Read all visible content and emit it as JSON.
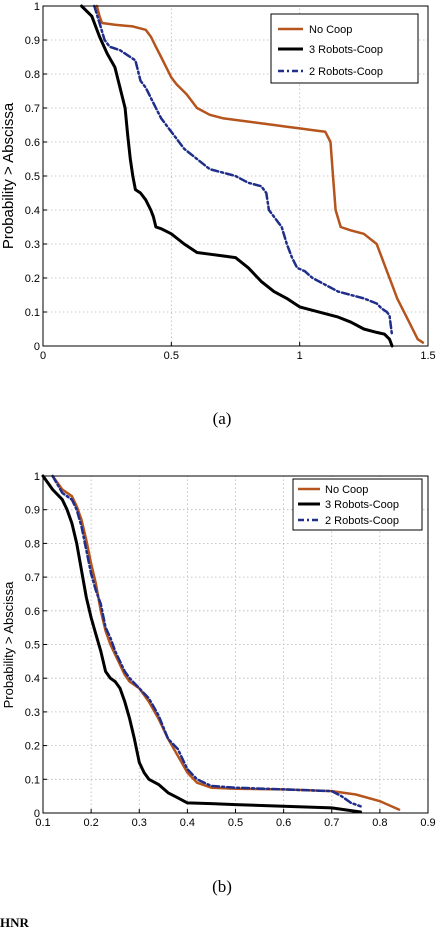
{
  "chart_data": [
    {
      "type": "line",
      "title": "",
      "xlabel": "",
      "ylabel": "Probability > Abscissa",
      "xlim": [
        0,
        1.5
      ],
      "ylim": [
        0,
        1
      ],
      "xticks": [
        "0",
        "0.5",
        "1",
        "1.5"
      ],
      "yticks": [
        "0",
        "0.1",
        "0.2",
        "0.3",
        "0.4",
        "0.5",
        "0.6",
        "0.7",
        "0.8",
        "0.9",
        "1"
      ],
      "grid": true,
      "legend": "top-right",
      "caption": "(a)",
      "series": [
        {
          "name": "No Coop",
          "color": "#b5541c",
          "dash": "solid",
          "x": [
            0.21,
            0.22,
            0.23,
            0.28,
            0.35,
            0.4,
            0.42,
            0.44,
            0.46,
            0.48,
            0.5,
            0.52,
            0.56,
            0.6,
            0.65,
            0.7,
            0.8,
            0.9,
            0.95,
            1.0,
            1.05,
            1.1,
            1.12,
            1.13,
            1.14,
            1.16,
            1.2,
            1.25,
            1.3,
            1.32,
            1.34,
            1.36,
            1.38,
            1.4,
            1.42,
            1.44,
            1.46,
            1.48
          ],
          "y": [
            1.0,
            0.97,
            0.95,
            0.945,
            0.94,
            0.93,
            0.91,
            0.88,
            0.85,
            0.82,
            0.79,
            0.77,
            0.74,
            0.7,
            0.68,
            0.67,
            0.66,
            0.65,
            0.645,
            0.64,
            0.635,
            0.63,
            0.6,
            0.5,
            0.4,
            0.35,
            0.34,
            0.33,
            0.3,
            0.26,
            0.22,
            0.18,
            0.14,
            0.11,
            0.08,
            0.05,
            0.02,
            0.01
          ]
        },
        {
          "name": "3 Robots-Coop",
          "color": "#000000",
          "dash": "solid",
          "x": [
            0.15,
            0.19,
            0.22,
            0.25,
            0.28,
            0.3,
            0.32,
            0.33,
            0.34,
            0.35,
            0.36,
            0.38,
            0.4,
            0.42,
            0.43,
            0.44,
            0.46,
            0.5,
            0.55,
            0.6,
            0.65,
            0.7,
            0.75,
            0.8,
            0.85,
            0.9,
            0.95,
            0.98,
            1.0,
            1.05,
            1.1,
            1.15,
            1.2,
            1.25,
            1.3,
            1.33,
            1.35,
            1.36
          ],
          "y": [
            1.0,
            0.97,
            0.91,
            0.86,
            0.82,
            0.76,
            0.7,
            0.62,
            0.55,
            0.5,
            0.46,
            0.45,
            0.43,
            0.4,
            0.38,
            0.35,
            0.345,
            0.33,
            0.3,
            0.275,
            0.27,
            0.265,
            0.26,
            0.23,
            0.19,
            0.16,
            0.14,
            0.125,
            0.115,
            0.105,
            0.095,
            0.085,
            0.07,
            0.05,
            0.04,
            0.035,
            0.02,
            0.0
          ]
        },
        {
          "name": "2 Robots-Coop",
          "color": "#1f2e8a",
          "dash": "dashdot",
          "x": [
            0.2,
            0.22,
            0.24,
            0.26,
            0.28,
            0.3,
            0.32,
            0.34,
            0.36,
            0.38,
            0.4,
            0.42,
            0.44,
            0.46,
            0.5,
            0.55,
            0.6,
            0.65,
            0.7,
            0.75,
            0.8,
            0.85,
            0.87,
            0.88,
            0.9,
            0.93,
            0.95,
            0.97,
            0.99,
            1.02,
            1.05,
            1.1,
            1.15,
            1.2,
            1.25,
            1.3,
            1.32,
            1.34,
            1.35,
            1.36
          ],
          "y": [
            1.0,
            0.95,
            0.9,
            0.88,
            0.875,
            0.87,
            0.86,
            0.85,
            0.84,
            0.78,
            0.76,
            0.73,
            0.7,
            0.67,
            0.63,
            0.58,
            0.55,
            0.52,
            0.51,
            0.5,
            0.48,
            0.47,
            0.45,
            0.4,
            0.38,
            0.35,
            0.3,
            0.26,
            0.23,
            0.22,
            0.2,
            0.18,
            0.16,
            0.15,
            0.14,
            0.125,
            0.11,
            0.1,
            0.09,
            0.03
          ]
        }
      ]
    },
    {
      "type": "line",
      "title": "",
      "xlabel": "",
      "ylabel": "Probability > Abscissa",
      "xlim": [
        0.1,
        0.9
      ],
      "ylim": [
        0,
        1
      ],
      "xticks": [
        "0.1",
        "0.2",
        "0.3",
        "0.4",
        "0.5",
        "0.6",
        "0.7",
        "0.8",
        "0.9"
      ],
      "yticks": [
        "0",
        "0.1",
        "0.2",
        "0.3",
        "0.4",
        "0.5",
        "0.6",
        "0.7",
        "0.8",
        "0.9",
        "1"
      ],
      "grid": true,
      "legend": "top-right",
      "caption": "(b)",
      "series": [
        {
          "name": "No Coop",
          "color": "#b5541c",
          "dash": "solid",
          "x": [
            0.12,
            0.14,
            0.16,
            0.17,
            0.18,
            0.19,
            0.2,
            0.21,
            0.22,
            0.23,
            0.24,
            0.25,
            0.26,
            0.27,
            0.28,
            0.3,
            0.32,
            0.34,
            0.36,
            0.38,
            0.4,
            0.42,
            0.45,
            0.5,
            0.6,
            0.7,
            0.75,
            0.8,
            0.84
          ],
          "y": [
            1.0,
            0.96,
            0.94,
            0.91,
            0.87,
            0.81,
            0.74,
            0.68,
            0.6,
            0.54,
            0.5,
            0.47,
            0.44,
            0.41,
            0.39,
            0.37,
            0.33,
            0.28,
            0.22,
            0.17,
            0.12,
            0.09,
            0.075,
            0.072,
            0.07,
            0.065,
            0.055,
            0.035,
            0.01
          ]
        },
        {
          "name": "3 Robots-Coop",
          "color": "#000000",
          "dash": "solid",
          "x": [
            0.1,
            0.12,
            0.14,
            0.15,
            0.16,
            0.17,
            0.18,
            0.19,
            0.2,
            0.21,
            0.22,
            0.23,
            0.24,
            0.25,
            0.26,
            0.27,
            0.28,
            0.29,
            0.3,
            0.31,
            0.32,
            0.34,
            0.36,
            0.38,
            0.4,
            0.45,
            0.5,
            0.6,
            0.7,
            0.76
          ],
          "y": [
            1.0,
            0.96,
            0.93,
            0.9,
            0.86,
            0.8,
            0.72,
            0.64,
            0.58,
            0.53,
            0.48,
            0.42,
            0.4,
            0.39,
            0.37,
            0.33,
            0.28,
            0.22,
            0.15,
            0.12,
            0.1,
            0.085,
            0.06,
            0.045,
            0.03,
            0.028,
            0.025,
            0.02,
            0.015,
            0.003
          ]
        },
        {
          "name": "2 Robots-Coop",
          "color": "#1f2e8a",
          "dash": "dashdot",
          "x": [
            0.12,
            0.14,
            0.16,
            0.17,
            0.18,
            0.19,
            0.2,
            0.21,
            0.22,
            0.23,
            0.24,
            0.25,
            0.26,
            0.27,
            0.28,
            0.3,
            0.32,
            0.34,
            0.36,
            0.38,
            0.4,
            0.42,
            0.45,
            0.5,
            0.6,
            0.7,
            0.72,
            0.74,
            0.76
          ],
          "y": [
            1.0,
            0.95,
            0.93,
            0.9,
            0.85,
            0.78,
            0.71,
            0.66,
            0.62,
            0.55,
            0.52,
            0.48,
            0.45,
            0.42,
            0.4,
            0.37,
            0.34,
            0.29,
            0.22,
            0.19,
            0.13,
            0.1,
            0.08,
            0.075,
            0.07,
            0.065,
            0.05,
            0.03,
            0.02
          ]
        }
      ]
    }
  ],
  "footer_fragment": "HNR"
}
